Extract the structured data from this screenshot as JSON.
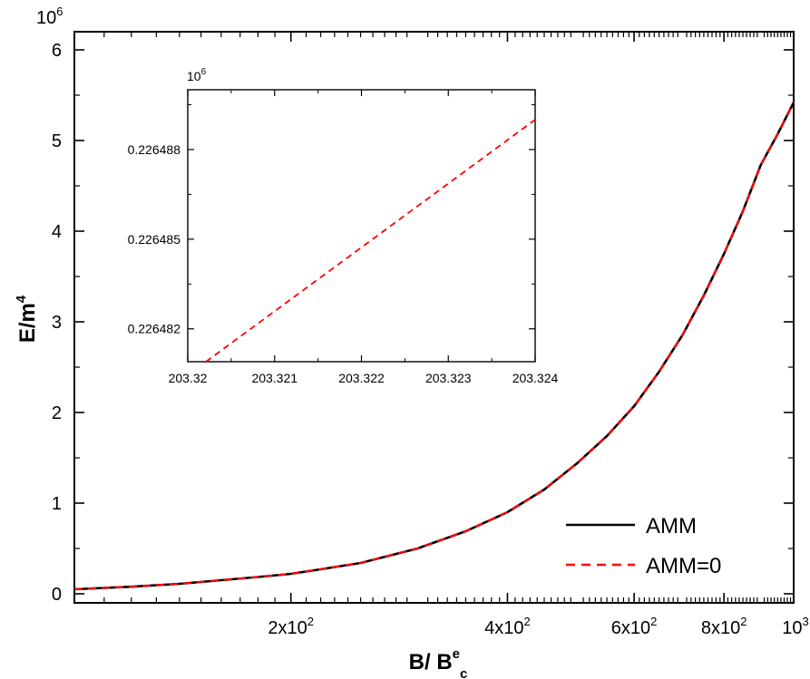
{
  "chart_data": [
    {
      "type": "line",
      "xlabel": "B/ B",
      "xlabel_sup": "e",
      "xlabel_sub": "c",
      "ylabel": "E/m",
      "ylabel_sup": "4",
      "y_multiplier": {
        "base": "10",
        "exp": "6"
      },
      "x_scale": "log",
      "xlim": [
        100,
        1000
      ],
      "ylim": [
        -0.1,
        6.2
      ],
      "x_ticks": [
        {
          "value": 200,
          "mant": "2x10",
          "exp": "2"
        },
        {
          "value": 400,
          "mant": "4x10",
          "exp": "2"
        },
        {
          "value": 600,
          "mant": "6x10",
          "exp": "2"
        },
        {
          "value": 800,
          "mant": "8x10",
          "exp": "2"
        },
        {
          "value": 1000,
          "mant": "10",
          "exp": "3"
        }
      ],
      "y_ticks": [
        {
          "value": 0,
          "label": "0"
        },
        {
          "value": 1,
          "label": "1"
        },
        {
          "value": 2,
          "label": "2"
        },
        {
          "value": 3,
          "label": "3"
        },
        {
          "value": 4,
          "label": "4"
        },
        {
          "value": 5,
          "label": "5"
        },
        {
          "value": 6,
          "label": "6"
        }
      ],
      "legend_position": "bottom-right",
      "series": [
        {
          "name": "AMM",
          "color": "#000000",
          "dash": "solid",
          "x": [
            100,
            120,
            140,
            160,
            180,
            200,
            220,
            250,
            300,
            350,
            400,
            450,
            500,
            550,
            600,
            650,
            700,
            750,
            800,
            850,
            900,
            950,
            1000
          ],
          "y": [
            0.05,
            0.078,
            0.11,
            0.15,
            0.185,
            0.22,
            0.27,
            0.34,
            0.5,
            0.69,
            0.9,
            1.15,
            1.44,
            1.74,
            2.07,
            2.45,
            2.85,
            3.29,
            3.75,
            4.22,
            4.73,
            5.07,
            5.42
          ]
        },
        {
          "name": "AMM=0",
          "color": "#ff0000",
          "dash": "dashed",
          "x": [
            100,
            120,
            140,
            160,
            180,
            200,
            220,
            250,
            300,
            350,
            400,
            450,
            500,
            550,
            600,
            650,
            700,
            750,
            800,
            850,
            900,
            950,
            1000
          ],
          "y": [
            0.05,
            0.078,
            0.11,
            0.15,
            0.185,
            0.22,
            0.27,
            0.34,
            0.5,
            0.69,
            0.9,
            1.15,
            1.44,
            1.74,
            2.07,
            2.45,
            2.85,
            3.29,
            3.75,
            4.22,
            4.73,
            5.07,
            5.42
          ]
        }
      ]
    },
    {
      "type": "line",
      "role": "inset",
      "y_multiplier": {
        "base": "10",
        "exp": "6"
      },
      "xlim": [
        203.32,
        203.324
      ],
      "ylim": [
        0.2264809,
        0.22649
      ],
      "x_ticks": [
        {
          "value": 203.32,
          "label": "203.32"
        },
        {
          "value": 203.321,
          "label": "203.321"
        },
        {
          "value": 203.322,
          "label": "203.322"
        },
        {
          "value": 203.323,
          "label": "203.323"
        },
        {
          "value": 203.324,
          "label": "203.324"
        }
      ],
      "y_ticks": [
        {
          "value": 0.226482,
          "label": "0.226482"
        },
        {
          "value": 0.226485,
          "label": "0.226485"
        },
        {
          "value": 0.226488,
          "label": "0.226488"
        }
      ],
      "series": [
        {
          "name": "AMM=0",
          "color": "#ff0000",
          "dash": "dashed",
          "x": [
            203.32021,
            203.324
          ],
          "y": [
            0.2264809,
            0.226489
          ]
        }
      ]
    }
  ]
}
